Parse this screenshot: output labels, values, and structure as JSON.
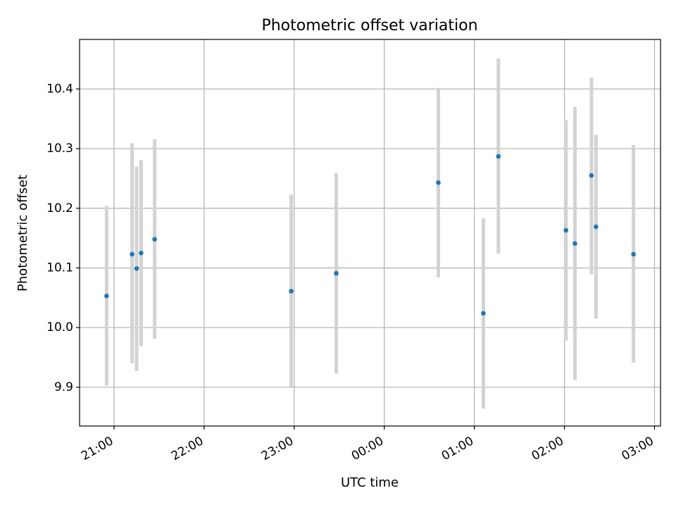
{
  "chart_data": {
    "type": "scatter",
    "title": "Photometric offset variation",
    "xlabel": "UTC time",
    "ylabel": "Photometric offset",
    "x_tick_labels": [
      "21:00",
      "22:00",
      "23:00",
      "00:00",
      "01:00",
      "02:00",
      "03:00"
    ],
    "y_tick_labels": [
      "9.9",
      "10.0",
      "10.1",
      "10.2",
      "10.3",
      "10.4"
    ],
    "y_ticks": [
      9.9,
      10.0,
      10.1,
      10.2,
      10.3,
      10.4
    ],
    "xlim": [
      "20:37",
      "03:04"
    ],
    "ylim": [
      9.835,
      10.483
    ],
    "grid": true,
    "colors": {
      "marker": "#1f77b4",
      "errorbar": "#d3d3d3",
      "grid": "#b0b0b0"
    },
    "series": [
      {
        "points": [
          {
            "time": "20:55",
            "y": 10.053,
            "y_low": 9.903,
            "y_high": 10.204
          },
          {
            "time": "21:12",
            "y": 10.123,
            "y_low": 9.94,
            "y_high": 10.309
          },
          {
            "time": "21:15",
            "y": 10.099,
            "y_low": 9.927,
            "y_high": 10.27
          },
          {
            "time": "21:18",
            "y": 10.125,
            "y_low": 9.969,
            "y_high": 10.281
          },
          {
            "time": "21:27",
            "y": 10.148,
            "y_low": 9.981,
            "y_high": 10.316
          },
          {
            "time": "22:58",
            "y": 10.061,
            "y_low": 9.9,
            "y_high": 10.223
          },
          {
            "time": "23:28",
            "y": 10.091,
            "y_low": 9.923,
            "y_high": 10.259
          },
          {
            "time": "00:36",
            "y": 10.243,
            "y_low": 10.084,
            "y_high": 10.402
          },
          {
            "time": "01:06",
            "y": 10.024,
            "y_low": 9.864,
            "y_high": 10.183
          },
          {
            "time": "01:16",
            "y": 10.287,
            "y_low": 10.124,
            "y_high": 10.451
          },
          {
            "time": "02:01",
            "y": 10.163,
            "y_low": 9.978,
            "y_high": 10.348
          },
          {
            "time": "02:07",
            "y": 10.141,
            "y_low": 9.912,
            "y_high": 10.37
          },
          {
            "time": "02:18",
            "y": 10.255,
            "y_low": 10.089,
            "y_high": 10.419
          },
          {
            "time": "02:21",
            "y": 10.169,
            "y_low": 10.015,
            "y_high": 10.323
          },
          {
            "time": "02:46",
            "y": 10.123,
            "y_low": 9.941,
            "y_high": 10.306
          }
        ]
      }
    ]
  }
}
